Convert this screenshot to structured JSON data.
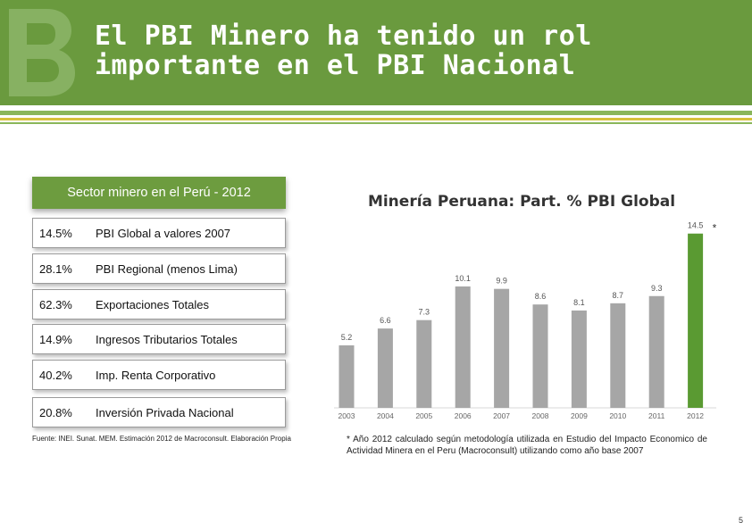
{
  "header": {
    "title_line1": "El PBI Minero ha tenido un rol",
    "title_line2": "importante en el PBI Nacional"
  },
  "panel": {
    "title": "Sector minero en el Perú - 2012",
    "rows": [
      {
        "pct": "14.5%",
        "label": "PBI Global a valores 2007"
      },
      {
        "pct": "28.1%",
        "label": "PBI Regional (menos Lima)"
      },
      {
        "pct": "62.3%",
        "label": "Exportaciones Totales"
      },
      {
        "pct": "14.9%",
        "label": "Ingresos Tributarios Totales"
      },
      {
        "pct": "40.2%",
        "label": "Imp. Renta Corporativo"
      },
      {
        "pct": "20.8%",
        "label": "Inversión Privada Nacional"
      }
    ],
    "source": "Fuente: INEI. Sunat. MEM. Estimación 2012 de Macroconsult. Elaboración Propia"
  },
  "chart_data": {
    "type": "bar",
    "title": "Minería Peruana: Part. % PBI Global",
    "categories": [
      "2003",
      "2004",
      "2005",
      "2006",
      "2007",
      "2008",
      "2009",
      "2010",
      "2011",
      "2012"
    ],
    "values": [
      5.2,
      6.6,
      7.3,
      10.1,
      9.9,
      8.6,
      8.1,
      8.7,
      9.3,
      14.5
    ],
    "value_labels": [
      "5.2",
      "6.6",
      "7.3",
      "10.1",
      "9.9",
      "8.6",
      "8.1",
      "8.7",
      "9.3",
      "14.5"
    ],
    "highlight_index": 9,
    "highlight_marker": "*",
    "colors": {
      "bar": "#a6a6a6",
      "highlight": "#5a9a32"
    },
    "ylim": [
      0,
      15
    ],
    "xlabel": "",
    "ylabel": ""
  },
  "note": "* Año 2012 calculado según metodología utilizada en Estudio del Impacto Economico de Actividad Minera en el Peru (Macroconsult) utilizando como año base 2007",
  "page_number": "5",
  "colors": {
    "brand_green": "#6a9a3e",
    "accent_yellow": "#d7c13c"
  }
}
